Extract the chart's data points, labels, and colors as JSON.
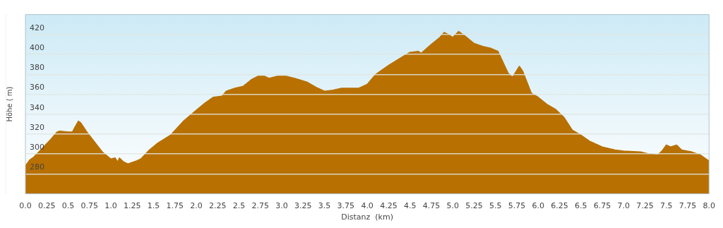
{
  "chart_data": {
    "type": "area",
    "xlabel": "Distanz  (km)",
    "ylabel": "Höhe ( m)",
    "x": [
      0,
      0.05,
      0.1,
      0.2,
      0.3,
      0.37,
      0.4,
      0.5,
      0.55,
      0.58,
      0.62,
      0.65,
      0.72,
      0.8,
      0.9,
      1.0,
      1.05,
      1.08,
      1.1,
      1.15,
      1.2,
      1.3,
      1.35,
      1.45,
      1.55,
      1.7,
      1.85,
      2.0,
      2.1,
      2.2,
      2.3,
      2.35,
      2.45,
      2.55,
      2.65,
      2.72,
      2.8,
      2.85,
      2.95,
      3.05,
      3.15,
      3.3,
      3.4,
      3.5,
      3.6,
      3.7,
      3.9,
      4.0,
      4.1,
      4.25,
      4.4,
      4.5,
      4.6,
      4.63,
      4.75,
      4.85,
      4.9,
      4.95,
      5.0,
      5.07,
      5.15,
      5.25,
      5.35,
      5.45,
      5.53,
      5.6,
      5.65,
      5.7,
      5.78,
      5.82,
      5.92,
      6.0,
      6.1,
      6.2,
      6.3,
      6.4,
      6.5,
      6.6,
      6.75,
      6.9,
      7.0,
      7.2,
      7.3,
      7.4,
      7.45,
      7.5,
      7.55,
      7.62,
      7.68,
      7.8,
      7.9,
      8.0
    ],
    "series": [
      {
        "color": "#b87000",
        "values": [
          288,
          294,
          297,
          306,
          315,
          322,
          323,
          322,
          322,
          327,
          333,
          331,
          322,
          313,
          302,
          295,
          296,
          292,
          296,
          292,
          290,
          293,
          295,
          304,
          311,
          319,
          333,
          344,
          351,
          357,
          358,
          363,
          366,
          368,
          375,
          378,
          378,
          376,
          378,
          378,
          376,
          372,
          367,
          363,
          364,
          366,
          366,
          370,
          380,
          389,
          397,
          402,
          403,
          401,
          410,
          417,
          422,
          420,
          417,
          423,
          418,
          411,
          408,
          406,
          403,
          390,
          381,
          377,
          388,
          383,
          361,
          357,
          350,
          345,
          337,
          324,
          319,
          313,
          307,
          304,
          303,
          302,
          300,
          299,
          303,
          309,
          307,
          309,
          304,
          302,
          299,
          293
        ]
      }
    ],
    "xlim": [
      0,
      8
    ],
    "xticks": [
      {
        "value": 0,
        "label": "0.0"
      },
      0.25,
      0.5,
      0.75,
      {
        "value": 1,
        "label": "1.0"
      },
      1.25,
      1.5,
      1.75,
      {
        "value": 2,
        "label": "2.0"
      },
      2.25,
      2.5,
      2.75,
      {
        "value": 3,
        "label": "3.0"
      },
      3.25,
      3.5,
      3.75,
      {
        "value": 4,
        "label": "4.0"
      },
      4.25,
      4.5,
      4.75,
      {
        "value": 5,
        "label": "5.0"
      },
      5.25,
      5.5,
      5.75,
      {
        "value": 6,
        "label": "6.0"
      },
      6.25,
      6.5,
      6.75,
      {
        "value": 7,
        "label": "7.0"
      },
      7.25,
      7.5,
      7.75,
      {
        "value": 8,
        "label": "8.0"
      }
    ],
    "ylim": [
      260,
      440
    ],
    "yticks": [
      280,
      300,
      320,
      340,
      360,
      380,
      400,
      420
    ],
    "grid": "y",
    "legend": false,
    "marker": "none"
  }
}
